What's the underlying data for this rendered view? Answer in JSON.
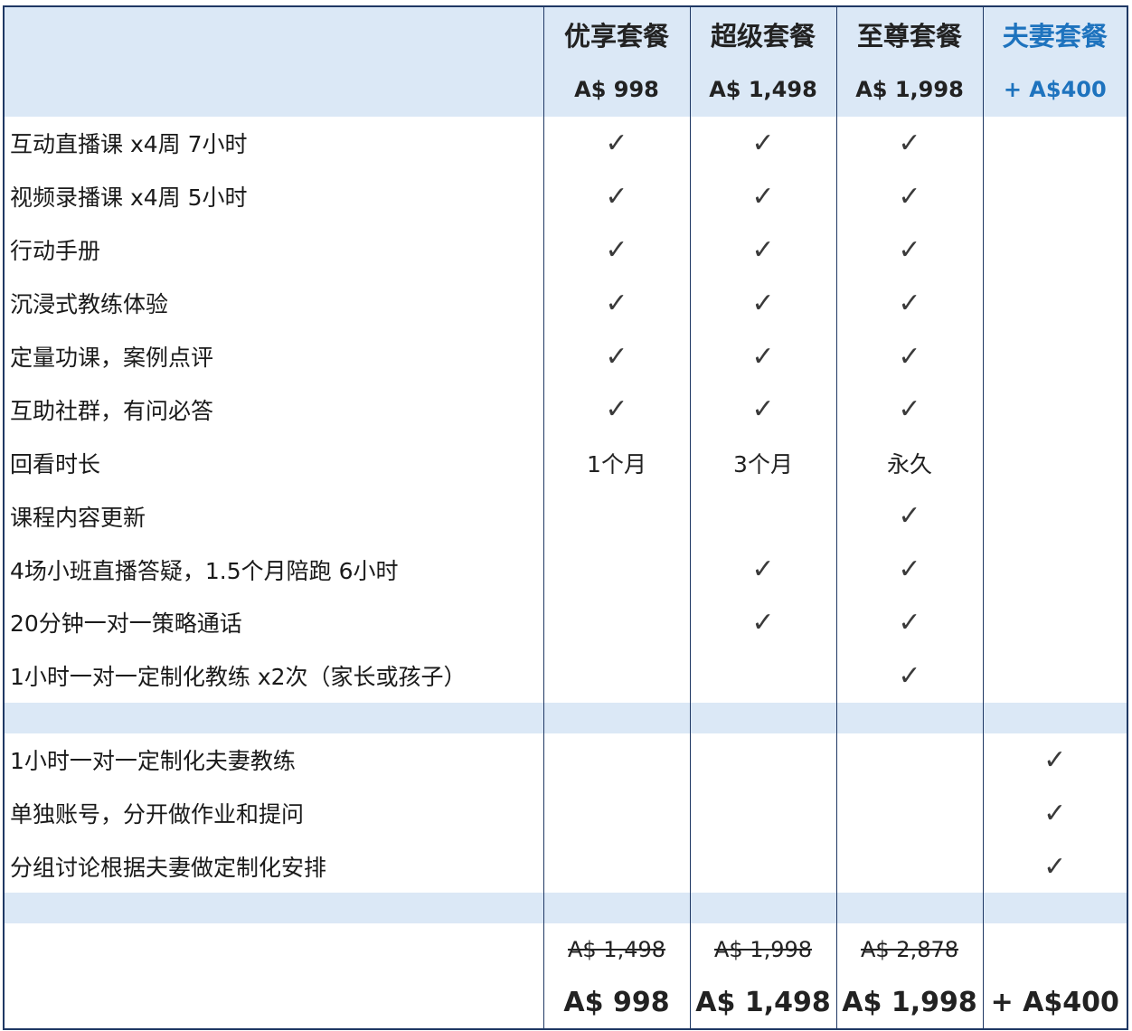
{
  "header": {
    "plans": [
      {
        "name": "优享套餐",
        "price": "A$ 998"
      },
      {
        "name": "超级套餐",
        "price": "A$ 1,498"
      },
      {
        "name": "至尊套餐",
        "price": "A$ 1,998"
      },
      {
        "name": "夫妻套餐",
        "price": "+ A$400"
      }
    ]
  },
  "features": [
    {
      "label": "互动直播课 x4周 7小时",
      "values": [
        "check",
        "check",
        "check",
        ""
      ]
    },
    {
      "label": "视频录播课 x4周 5小时",
      "values": [
        "check",
        "check",
        "check",
        ""
      ]
    },
    {
      "label": "行动手册",
      "values": [
        "check",
        "check",
        "check",
        ""
      ]
    },
    {
      "label": "沉浸式教练体验",
      "values": [
        "check",
        "check",
        "check",
        ""
      ]
    },
    {
      "label": "定量功课，案例点评",
      "values": [
        "check",
        "check",
        "check",
        ""
      ]
    },
    {
      "label": "互助社群，有问必答",
      "values": [
        "check",
        "check",
        "check",
        ""
      ]
    },
    {
      "label": "回看时长",
      "values": [
        "1个月",
        "3个月",
        "永久",
        ""
      ]
    },
    {
      "label": "课程内容更新",
      "values": [
        "",
        "",
        "check",
        ""
      ]
    },
    {
      "label": "4场小班直播答疑，1.5个月陪跑 6小时",
      "values": [
        "",
        "check",
        "check",
        ""
      ]
    },
    {
      "label": "20分钟一对一策略通话",
      "values": [
        "",
        "check",
        "check",
        ""
      ]
    },
    {
      "label": "1小时一对一定制化教练 x2次（家长或孩子）",
      "values": [
        "",
        "",
        "check",
        ""
      ]
    }
  ],
  "couple_features": [
    {
      "label": "1小时一对一定制化夫妻教练",
      "values": [
        "",
        "",
        "",
        "check"
      ]
    },
    {
      "label": "单独账号，分开做作业和提问",
      "values": [
        "",
        "",
        "",
        "check"
      ]
    },
    {
      "label": "分组讨论根据夫妻做定制化安排",
      "values": [
        "",
        "",
        "",
        "check"
      ]
    }
  ],
  "pricing": {
    "original": [
      "A$ 1,498",
      "A$ 1,998",
      "A$ 2,878",
      ""
    ],
    "discounted": [
      "A$ 998",
      "A$ 1,498",
      "A$ 1,998",
      "+ A$400"
    ]
  },
  "check_glyph": "✓",
  "colors": {
    "header_bg": "#dbe8f6",
    "border": "#1f3864",
    "accent": "#1e73be",
    "sale_price": "#e8241c"
  }
}
